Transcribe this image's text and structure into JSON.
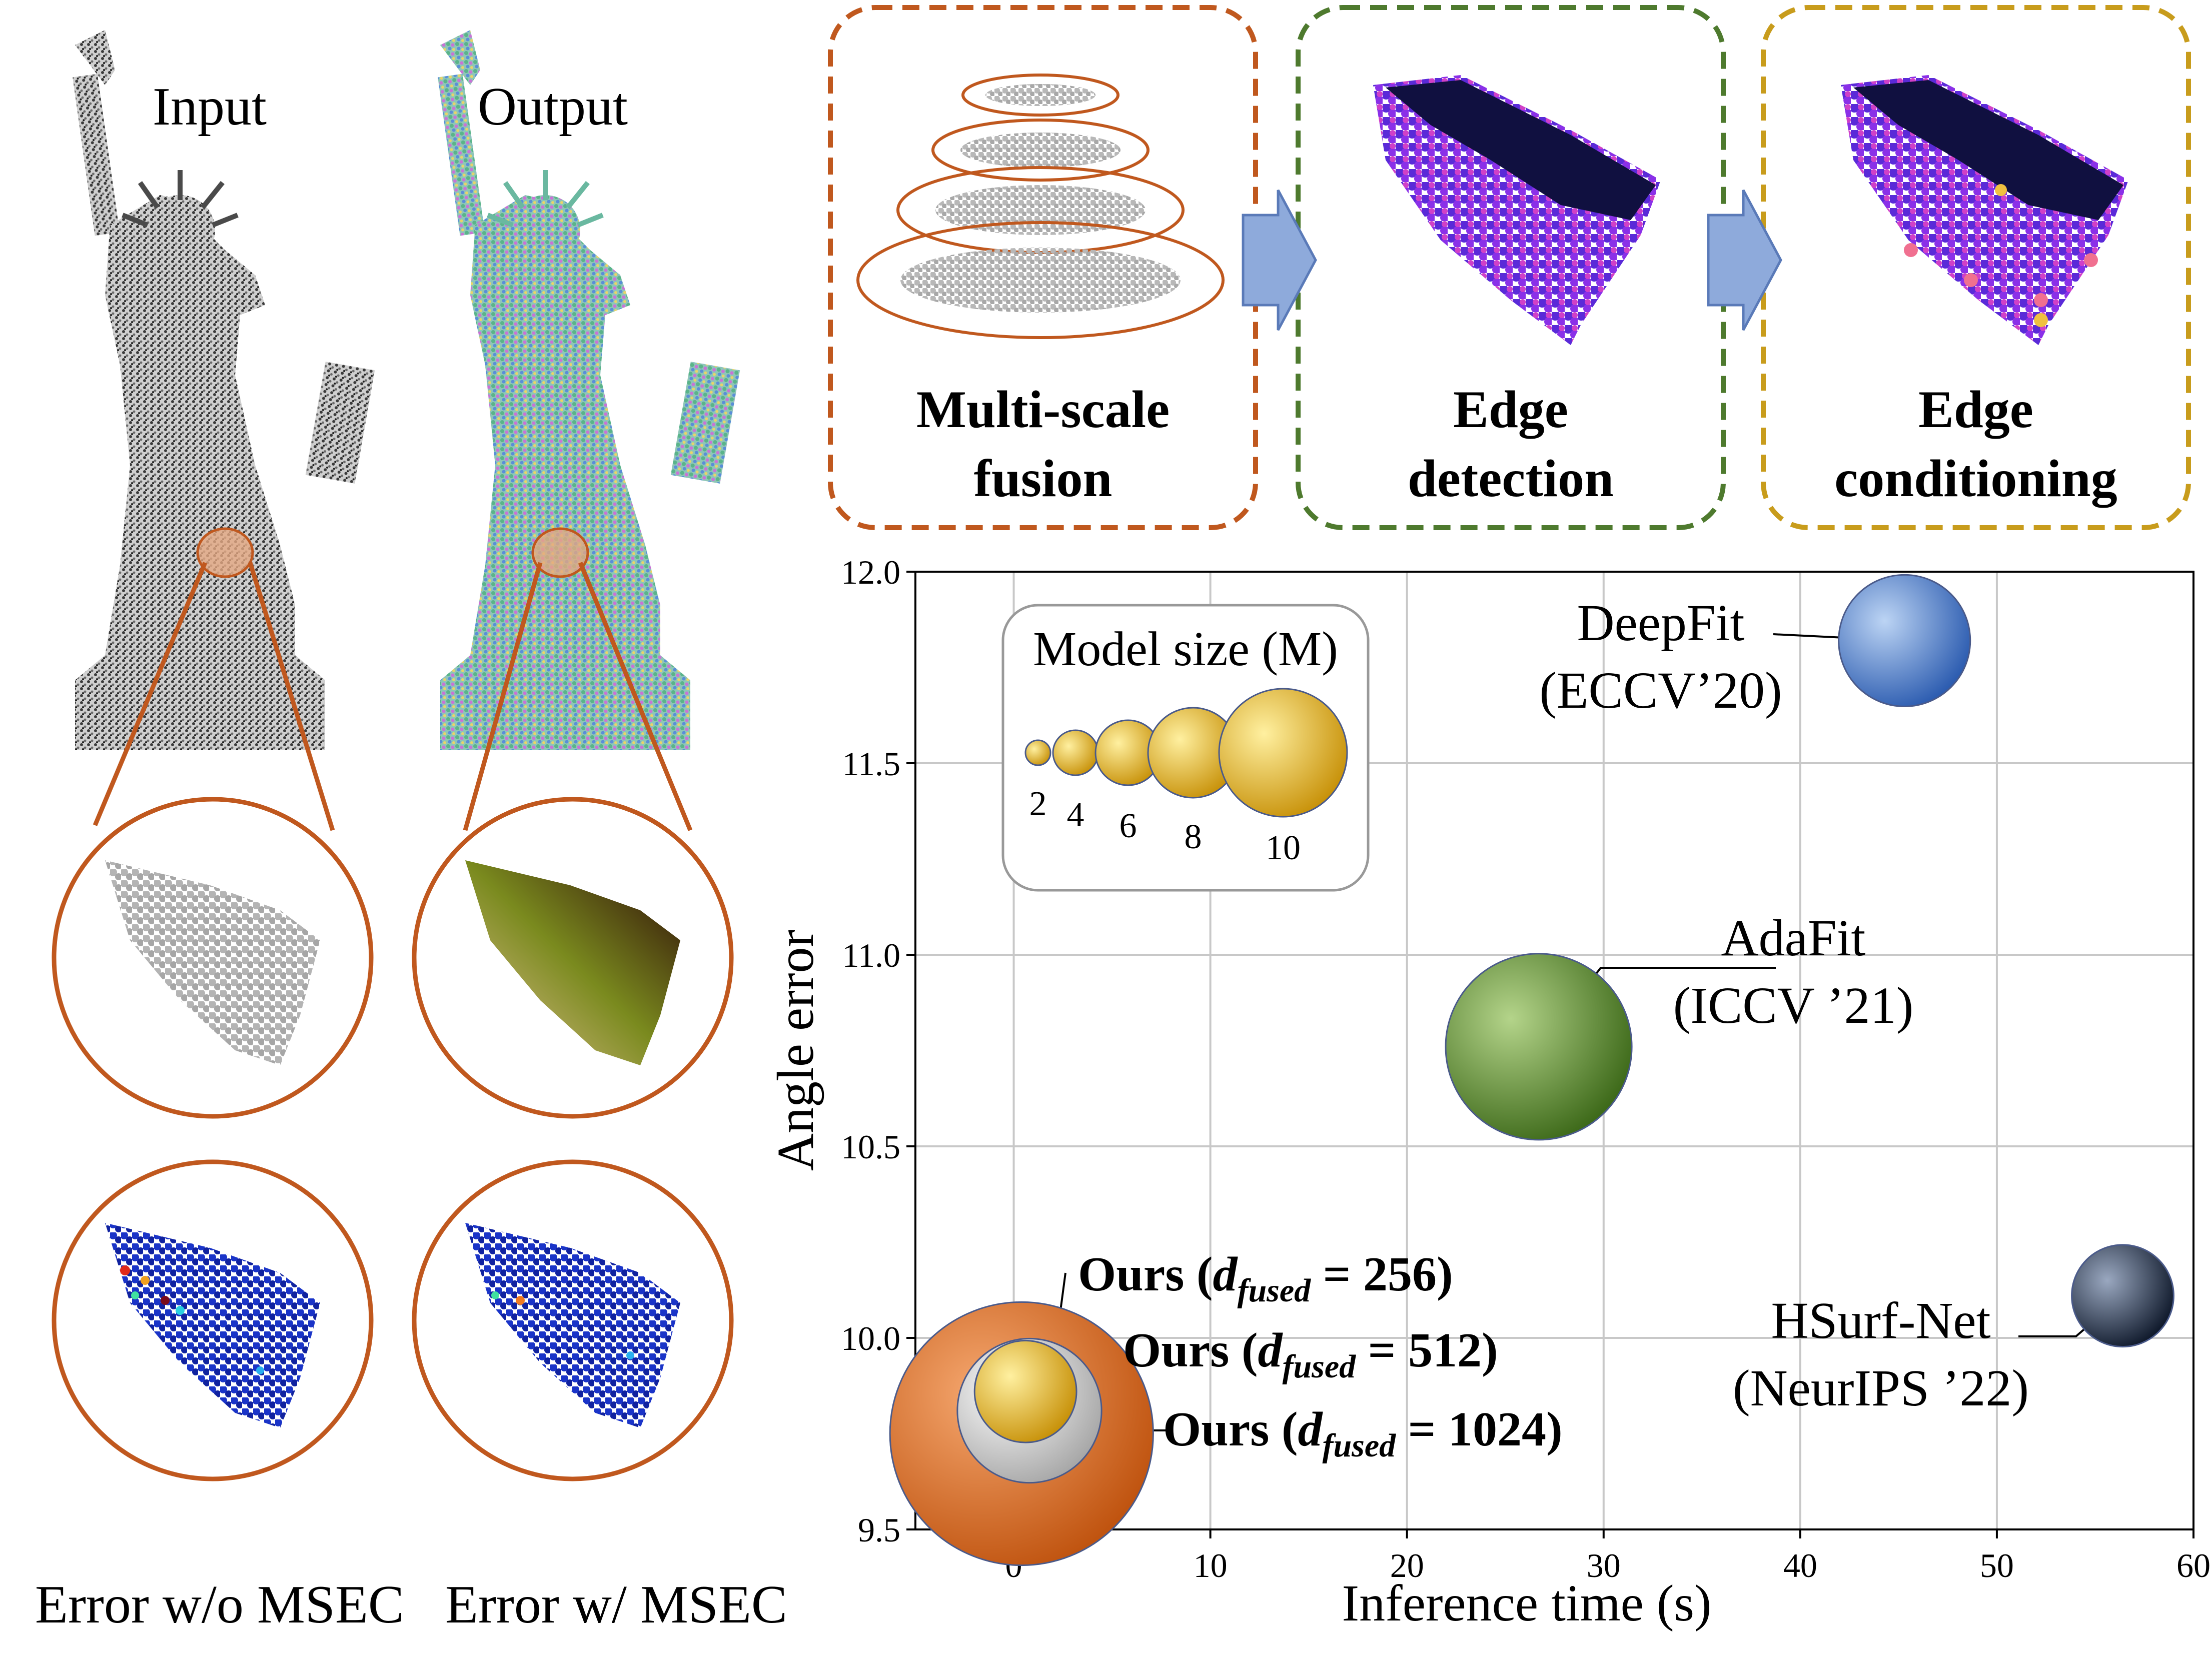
{
  "left_panel": {
    "input_label": "Input",
    "output_label": "Output",
    "error_wo_label": "Error w/o MSEC",
    "error_w_label": "Error w/ MSEC"
  },
  "pipeline": {
    "blocks": [
      {
        "line1": "Multi-scale",
        "line2": "fusion",
        "border_color": "#c0581e"
      },
      {
        "line1": "Edge",
        "line2": "detection",
        "border_color": "#4e7a2e"
      },
      {
        "line1": "Edge",
        "line2": "conditioning",
        "border_color": "#c89c1c"
      }
    ],
    "arrow_color": "#8eaadb"
  },
  "chart_data": {
    "type": "scatter",
    "xlabel": "Inference time (s)",
    "ylabel": "Angle error",
    "xlim": [
      -5,
      60
    ],
    "ylim": [
      9.5,
      12.0
    ],
    "xticks": [
      0,
      10,
      20,
      30,
      40,
      50,
      60
    ],
    "yticks": [
      9.5,
      10.0,
      10.5,
      11.0,
      11.5,
      12.0
    ],
    "x_tick_labels": [
      "0",
      "10",
      "20",
      "30",
      "40",
      "50",
      "60"
    ],
    "y_tick_labels": [
      "9.5",
      "10.0",
      "10.5",
      "11.0",
      "11.5",
      "12.0"
    ],
    "grid": true,
    "bubble_size_meaning": "model size (M)",
    "points": [
      {
        "method": "DeepFit",
        "venue": "(ECCV’20)",
        "x": 45.3,
        "y": 11.82,
        "size": 2.5,
        "color": "#3f78c8"
      },
      {
        "method": "AdaFit",
        "venue": "(ICCV ’21)",
        "x": 26.7,
        "y": 10.76,
        "size": 5.0,
        "color": "#5a8a2a"
      },
      {
        "method": "HSurf-Net",
        "venue": "(NeurIPS ’22)",
        "x": 56.4,
        "y": 10.11,
        "size": 1.5,
        "color": "#283850"
      },
      {
        "method": "Ours",
        "d_fused": "256",
        "x": 0.6,
        "y": 9.86,
        "size": 1.5,
        "color": "#c89c1c"
      },
      {
        "method": "Ours",
        "d_fused": "512",
        "x": 0.8,
        "y": 9.81,
        "size": 3.0,
        "color": "#e6e6e6"
      },
      {
        "method": "Ours",
        "d_fused": "1024",
        "x": 0.4,
        "y": 9.75,
        "size": 10.0,
        "color": "#d86618"
      }
    ],
    "ours_labels": [
      {
        "prefix": "Ours (",
        "d": "d",
        "sub": "fused",
        "eq": " = 256)"
      },
      {
        "prefix": "Ours (",
        "d": "d",
        "sub": "fused",
        "eq": " = 512)"
      },
      {
        "prefix": "Ours (",
        "d": "d",
        "sub": "fused",
        "eq": " = 1024)"
      }
    ],
    "size_legend": {
      "title": "Model size (M)",
      "sizes": [
        "2",
        "4",
        "6",
        "8",
        "10"
      ],
      "color": "#e2b020"
    }
  }
}
